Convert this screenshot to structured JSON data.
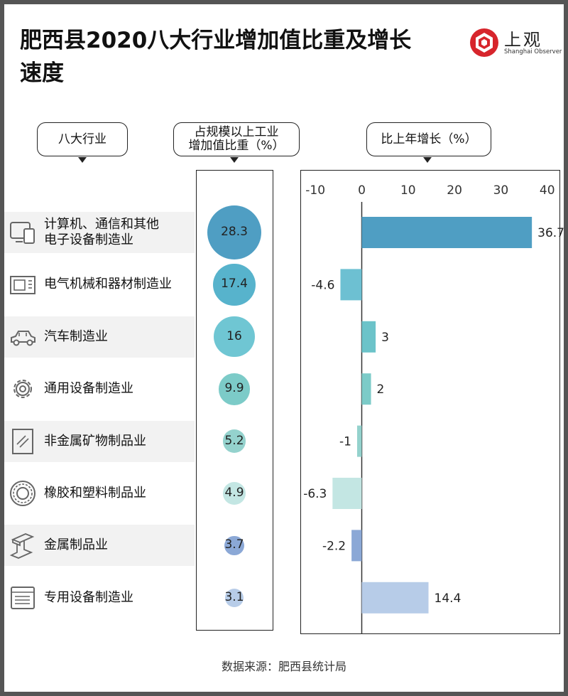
{
  "title": "肥西县2020八大行业增加值比重及增长速度",
  "logo": {
    "name": "上观",
    "en": "Shanghai Observer"
  },
  "headers": {
    "industry": "八大行业",
    "share_line1": "占规模以上工业",
    "share_line2": "增加值比重（%）",
    "growth": "比上年增长（%）"
  },
  "source": "数据来源：肥西县统计局",
  "industries": [
    {
      "name_line1": "计算机、通信和其他",
      "name_line2": "电子设备制造业",
      "icon": "computer-icon",
      "share": "28.3",
      "growth": "36.7"
    },
    {
      "name_line1": "电气机械和器材制造业",
      "name_line2": "",
      "icon": "appliance-icon",
      "share": "17.4",
      "growth": "-4.6"
    },
    {
      "name_line1": "汽车制造业",
      "name_line2": "",
      "icon": "car-icon",
      "share": "16",
      "growth": "3"
    },
    {
      "name_line1": "通用设备制造业",
      "name_line2": "",
      "icon": "gear-icon",
      "share": "9.9",
      "growth": "2"
    },
    {
      "name_line1": "非金属矿物制品业",
      "name_line2": "",
      "icon": "glass-panel-icon",
      "share": "5.2",
      "growth": "-1"
    },
    {
      "name_line1": "橡胶和塑料制品业",
      "name_line2": "",
      "icon": "tire-icon",
      "share": "4.9",
      "growth": "-6.3"
    },
    {
      "name_line1": "金属制品业",
      "name_line2": "",
      "icon": "steel-beam-icon",
      "share": "3.7",
      "growth": "-2.2"
    },
    {
      "name_line1": "专用设备制造业",
      "name_line2": "",
      "icon": "machine-panel-icon",
      "share": "3.1",
      "growth": "14.4"
    }
  ],
  "chart_data": [
    {
      "type": "bubble",
      "title": "占规模以上工业增加值比重（%）",
      "categories": [
        "计算机、通信和其他电子设备制造业",
        "电气机械和器材制造业",
        "汽车制造业",
        "通用设备制造业",
        "非金属矿物制品业",
        "橡胶和塑料制品业",
        "金属制品业",
        "专用设备制造业"
      ],
      "values": [
        28.3,
        17.4,
        16,
        9.9,
        5.2,
        4.9,
        3.7,
        3.1
      ]
    },
    {
      "type": "bar",
      "orientation": "horizontal",
      "title": "比上年增长（%）",
      "categories": [
        "计算机、通信和其他电子设备制造业",
        "电气机械和器材制造业",
        "汽车制造业",
        "通用设备制造业",
        "非金属矿物制品业",
        "橡胶和塑料制品业",
        "金属制品业",
        "专用设备制造业"
      ],
      "values": [
        36.7,
        -4.6,
        3,
        2,
        -1,
        -6.3,
        -2.2,
        14.4
      ],
      "xlim": [
        -10,
        40
      ],
      "xticks": [
        "-10",
        "0",
        "10",
        "20",
        "30",
        "40"
      ],
      "grid": false,
      "colors": [
        "#4f9ec3",
        "#6dc0d2",
        "#6cc3c9",
        "#7ccbc8",
        "#94d2cd",
        "#c3e6e3",
        "#8ba8d6",
        "#b7cce8"
      ]
    }
  ],
  "colors": {
    "bubbles": [
      "#4f9ec3",
      "#57b3cc",
      "#6fc6d3",
      "#7ccbc8",
      "#94d2cd",
      "#c3e6e3",
      "#8ba8d6",
      "#b7cce8"
    ],
    "stripe": "#f2f2f2",
    "logo_red": "#d7252c"
  }
}
